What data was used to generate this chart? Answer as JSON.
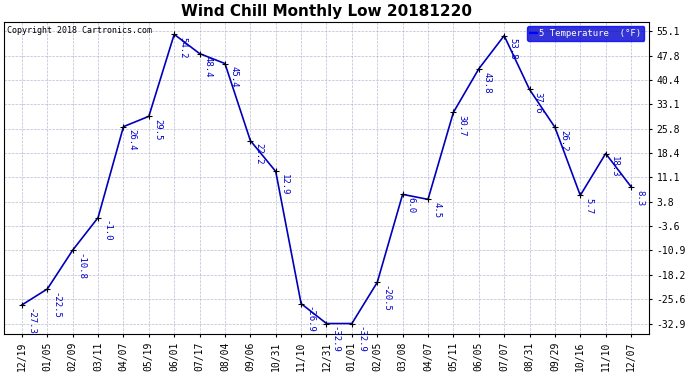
{
  "title": "Wind Chill Monthly Low 20181220",
  "copyright": "Copyright 2018 Cartronics.com",
  "legend_label": "5 Temperature  (°F)",
  "x_labels": [
    "12/19",
    "01/05",
    "02/09",
    "03/11",
    "04/07",
    "05/19",
    "06/01",
    "07/17",
    "08/04",
    "09/06",
    "10/31",
    "11/10",
    "12/31",
    "01/01",
    "02/05",
    "03/08",
    "04/07",
    "05/11",
    "06/05",
    "07/07",
    "08/31",
    "09/29",
    "10/16",
    "11/10",
    "12/07"
  ],
  "y_values": [
    -27.3,
    -22.5,
    -10.8,
    -1.0,
    26.4,
    29.5,
    54.2,
    48.4,
    45.4,
    22.2,
    12.9,
    -26.9,
    -32.9,
    -32.9,
    -20.5,
    6.0,
    4.5,
    30.7,
    43.8,
    53.8,
    37.6,
    26.2,
    5.7,
    18.3,
    8.3
  ],
  "point_labels": [
    "-27.3",
    "-22.5",
    "-10.8",
    "-1.0",
    "26.4",
    "29.5",
    "54.2",
    "48.4",
    "45.4",
    "22.2",
    "12.9",
    "-26.9",
    "-32.9",
    "-32.9",
    "-20.5",
    "6.0",
    "4.5",
    "30.7",
    "43.8",
    "53.8",
    "37.6",
    "26.2",
    "5.7",
    "18.3",
    "8.3"
  ],
  "line_color": "#0000bb",
  "marker_color": "#000000",
  "background_color": "#ffffff",
  "grid_color": "#aaaacc",
  "text_color": "#0000cc",
  "ylabel_right": [
    "55.1",
    "47.8",
    "40.4",
    "33.1",
    "25.8",
    "18.4",
    "11.1",
    "3.8",
    "-3.6",
    "-10.9",
    "-18.2",
    "-25.6",
    "-32.9"
  ],
  "ylim": [
    -36.0,
    58.0
  ],
  "yticks": [
    55.1,
    47.8,
    40.4,
    33.1,
    25.8,
    18.4,
    11.1,
    3.8,
    -3.6,
    -10.9,
    -18.2,
    -25.6,
    -32.9
  ],
  "title_fontsize": 11,
  "label_fontsize": 6.5,
  "tick_fontsize": 7,
  "legend_color_box": "#0000ff",
  "legend_text_color": "#0000ff",
  "legend_bg": "#ffff99",
  "legend_box_bg": "#0000cc"
}
